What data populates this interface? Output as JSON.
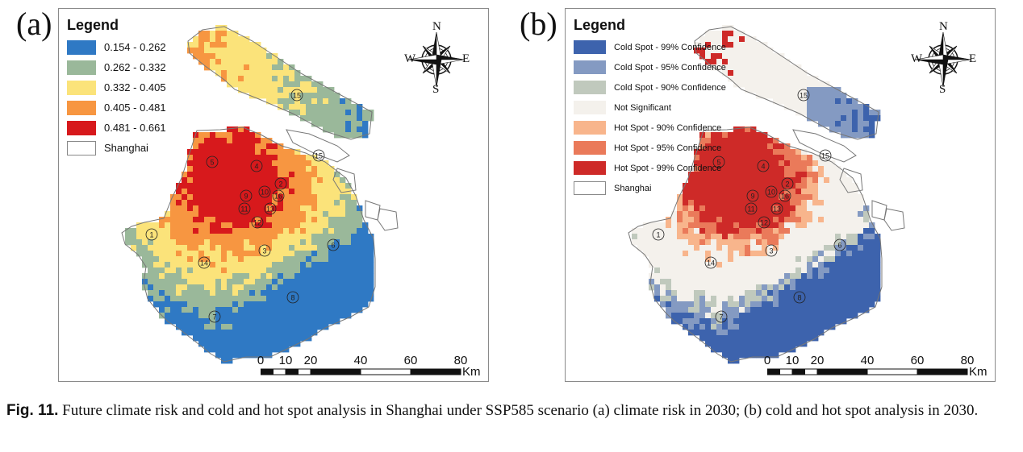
{
  "panels": {
    "a": {
      "letter": "(a)"
    },
    "b": {
      "letter": "(b)"
    }
  },
  "legend_a": {
    "title": "Legend",
    "items": [
      {
        "label": "0.154 - 0.262",
        "color": "#2f79c4"
      },
      {
        "label": "0.262 - 0.332",
        "color": "#9ab89a"
      },
      {
        "label": "0.332 - 0.405",
        "color": "#fbe37a"
      },
      {
        "label": "0.405 - 0.481",
        "color": "#f79641"
      },
      {
        "label": "0.481 - 0.661",
        "color": "#d7191c"
      },
      {
        "label": "Shanghai",
        "color": "#ffffff"
      }
    ]
  },
  "legend_b": {
    "title": "Legend",
    "items": [
      {
        "label": "Cold Spot - 99% Confidence",
        "color": "#3d63ad"
      },
      {
        "label": "Cold Spot - 95% Confidence",
        "color": "#849ac2"
      },
      {
        "label": "Cold Spot - 90% Confidence",
        "color": "#c0c9bd"
      },
      {
        "label": "Not Significant",
        "color": "#f4f1ec"
      },
      {
        "label": "Hot Spot - 90% Confidence",
        "color": "#f8b58c"
      },
      {
        "label": "Hot Spot - 95% Confidence",
        "color": "#ea7a5a"
      },
      {
        "label": "Hot Spot - 99% Confidence",
        "color": "#ce2a28"
      },
      {
        "label": "Shanghai",
        "color": "#ffffff"
      }
    ]
  },
  "north_arrow": {
    "n": "N",
    "s": "S",
    "e": "E",
    "w": "W",
    "icon": "compass-rose-icon"
  },
  "scale_bar": {
    "ticks": [
      "0",
      "10",
      "20",
      "40",
      "60",
      "80"
    ],
    "unit": "Km"
  },
  "district_labels": [
    "1",
    "2",
    "3",
    "4",
    "5",
    "6",
    "7",
    "8",
    "9",
    "10",
    "11",
    "12",
    "13",
    "14",
    "15",
    "16"
  ],
  "caption": {
    "label": "Fig. 11.",
    "text": "Future climate risk and cold and hot spot analysis in Shanghai under SSP585 scenario (a) climate risk in 2030; (b) cold and hot spot analysis in 2030."
  }
}
